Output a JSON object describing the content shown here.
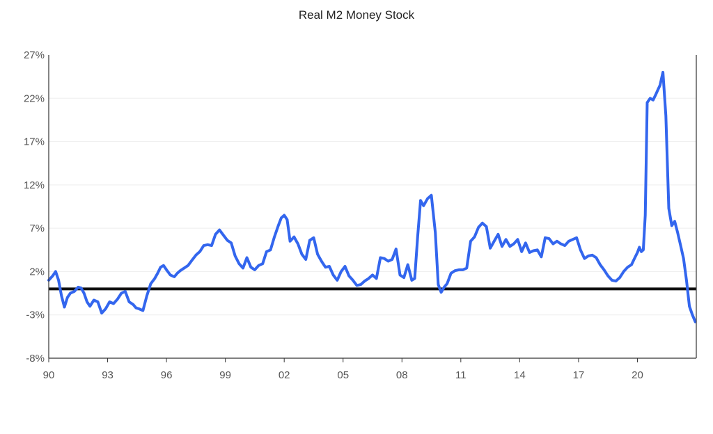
{
  "chart_data": {
    "type": "line",
    "title": "Real M2 Money Stock",
    "xlabel": "",
    "ylabel": "",
    "xlim": [
      1990.0,
      2023.0
    ],
    "ylim": [
      -8,
      27
    ],
    "y_ticks": [
      27,
      22,
      17,
      12,
      7,
      2,
      -3,
      -8
    ],
    "y_tick_labels": [
      "27%",
      "22%",
      "17%",
      "12%",
      "7%",
      "2%",
      "-3%",
      "-8%"
    ],
    "x_ticks": [
      1990,
      1993,
      1996,
      1999,
      2002,
      2005,
      2008,
      2011,
      2014,
      2017,
      2020
    ],
    "x_tick_labels": [
      "90",
      "93",
      "96",
      "99",
      "02",
      "05",
      "08",
      "11",
      "14",
      "17",
      "20"
    ],
    "grid": true,
    "reference_line": 0,
    "colors": {
      "line": "#3366ee",
      "reference": "#111111",
      "grid": "#eeeeee",
      "axis": "#333333"
    },
    "series": [
      {
        "x": [
          1990.0,
          1990.2,
          1990.35,
          1990.5,
          1990.65,
          1990.8,
          1990.95,
          1991.1,
          1991.3,
          1991.5,
          1991.65,
          1991.8,
          1991.95,
          1992.1,
          1992.3,
          1992.5,
          1992.7,
          1992.9,
          1993.1,
          1993.3,
          1993.5,
          1993.7,
          1993.9,
          1994.1,
          1994.3,
          1994.45,
          1994.6,
          1994.8,
          1995.0,
          1995.2,
          1995.4,
          1995.55,
          1995.7,
          1995.85,
          1996.0,
          1996.2,
          1996.4,
          1996.55,
          1996.7,
          1996.9,
          1997.1,
          1997.3,
          1997.5,
          1997.7,
          1997.9,
          1998.1,
          1998.3,
          1998.5,
          1998.7,
          1998.9,
          1999.1,
          1999.3,
          1999.5,
          1999.7,
          1999.9,
          2000.1,
          2000.3,
          2000.5,
          2000.7,
          2000.9,
          2001.1,
          2001.3,
          2001.5,
          2001.7,
          2001.85,
          2002.0,
          2002.15,
          2002.3,
          2002.5,
          2002.7,
          2002.9,
          2003.1,
          2003.3,
          2003.5,
          2003.7,
          2003.9,
          2004.1,
          2004.3,
          2004.5,
          2004.7,
          2004.9,
          2005.1,
          2005.3,
          2005.5,
          2005.7,
          2005.9,
          2006.1,
          2006.3,
          2006.5,
          2006.7,
          2006.9,
          2007.1,
          2007.3,
          2007.5,
          2007.7,
          2007.9,
          2008.1,
          2008.3,
          2008.5,
          2008.65,
          2008.8,
          2008.95,
          2009.1,
          2009.3,
          2009.5,
          2009.7,
          2009.85,
          2010.0,
          2010.15,
          2010.3,
          2010.5,
          2010.7,
          2010.9,
          2011.1,
          2011.3,
          2011.5,
          2011.7,
          2011.9,
          2012.1,
          2012.3,
          2012.5,
          2012.7,
          2012.9,
          2013.1,
          2013.3,
          2013.5,
          2013.7,
          2013.9,
          2014.1,
          2014.3,
          2014.5,
          2014.7,
          2014.9,
          2015.1,
          2015.3,
          2015.5,
          2015.7,
          2015.9,
          2016.1,
          2016.3,
          2016.5,
          2016.7,
          2016.9,
          2017.1,
          2017.3,
          2017.5,
          2017.7,
          2017.9,
          2018.1,
          2018.3,
          2018.5,
          2018.7,
          2018.9,
          2019.1,
          2019.3,
          2019.5,
          2019.7,
          2019.85,
          2020.0,
          2020.1,
          2020.2,
          2020.3,
          2020.4,
          2020.5,
          2020.65,
          2020.8,
          2020.95,
          2021.05,
          2021.15,
          2021.3,
          2021.45,
          2021.6,
          2021.75,
          2021.9,
          2022.05,
          2022.2,
          2022.35,
          2022.5,
          2022.65,
          2022.8,
          2022.95
        ],
        "y": [
          1.0,
          1.5,
          2.0,
          1.0,
          -0.8,
          -2.1,
          -1.0,
          -0.5,
          -0.3,
          0.2,
          0.1,
          -0.5,
          -1.5,
          -2.0,
          -1.3,
          -1.5,
          -2.8,
          -2.3,
          -1.5,
          -1.7,
          -1.2,
          -0.5,
          -0.3,
          -1.5,
          -1.8,
          -2.2,
          -2.3,
          -2.5,
          -0.8,
          0.6,
          1.2,
          1.8,
          2.5,
          2.7,
          2.2,
          1.6,
          1.4,
          1.8,
          2.1,
          2.4,
          2.7,
          3.3,
          3.9,
          4.3,
          5.0,
          5.1,
          5.0,
          6.3,
          6.8,
          6.2,
          5.6,
          5.3,
          3.8,
          2.9,
          2.4,
          3.6,
          2.5,
          2.2,
          2.7,
          2.9,
          4.3,
          4.5,
          6.0,
          7.3,
          8.2,
          8.5,
          8.0,
          5.5,
          6.0,
          5.2,
          4.0,
          3.4,
          5.6,
          5.9,
          4.0,
          3.2,
          2.5,
          2.6,
          1.6,
          1.0,
          2.0,
          2.6,
          1.5,
          1.0,
          0.4,
          0.5,
          0.9,
          1.2,
          1.6,
          1.2,
          3.6,
          3.5,
          3.2,
          3.4,
          4.6,
          1.6,
          1.3,
          2.8,
          1.0,
          1.2,
          6.0,
          10.2,
          9.6,
          10.4,
          10.8,
          6.5,
          0.5,
          -0.4,
          0.2,
          0.6,
          1.8,
          2.1,
          2.2,
          2.2,
          2.4,
          5.5,
          6.0,
          7.1,
          7.6,
          7.2,
          4.7,
          5.5,
          6.3,
          4.9,
          5.7,
          4.9,
          5.2,
          5.7,
          4.3,
          5.3,
          4.2,
          4.4,
          4.5,
          3.7,
          5.9,
          5.8,
          5.2,
          5.5,
          5.2,
          5.0,
          5.5,
          5.7,
          5.9,
          4.5,
          3.5,
          3.8,
          3.9,
          3.6,
          2.8,
          2.2,
          1.5,
          1.0,
          0.9,
          1.3,
          2.0,
          2.5,
          2.8,
          3.5,
          4.2,
          4.8,
          4.3,
          4.5,
          8.5,
          21.5,
          22.0,
          21.8,
          22.5,
          23.0,
          23.5,
          25.0,
          20.0,
          9.3,
          7.3,
          7.8,
          6.5,
          5.0,
          3.5,
          1.0,
          -2.0,
          -3.0,
          -3.8
        ]
      }
    ]
  }
}
